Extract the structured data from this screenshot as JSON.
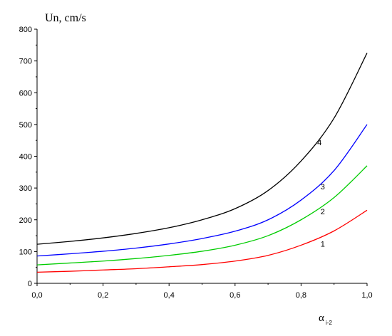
{
  "chart_data": {
    "type": "line",
    "title": "",
    "ylabel": "Un, cm/s",
    "xlabel": "α",
    "xlabel_subscript": "i-2",
    "xlim": [
      0.0,
      1.0
    ],
    "ylim": [
      0,
      800
    ],
    "x_ticks": [
      "0,0",
      "0,2",
      "0,4",
      "0,6",
      "0,8",
      "1,0"
    ],
    "y_ticks": [
      "0",
      "100",
      "200",
      "300",
      "400",
      "500",
      "600",
      "700",
      "800"
    ],
    "grid": false,
    "x": [
      0.0,
      0.1,
      0.2,
      0.3,
      0.4,
      0.5,
      0.6,
      0.7,
      0.8,
      0.9,
      1.0
    ],
    "series": [
      {
        "name": "1",
        "color": "#ff0000",
        "values": [
          35,
          38,
          42,
          46,
          52,
          59,
          70,
          88,
          120,
          165,
          230
        ]
      },
      {
        "name": "2",
        "color": "#00cc00",
        "values": [
          58,
          64,
          70,
          78,
          88,
          101,
          120,
          150,
          200,
          270,
          370
        ]
      },
      {
        "name": "3",
        "color": "#0000ff",
        "values": [
          86,
          93,
          101,
          111,
          124,
          141,
          164,
          200,
          262,
          355,
          500
        ]
      },
      {
        "name": "4",
        "color": "#000000",
        "values": [
          123,
          132,
          143,
          157,
          175,
          200,
          235,
          292,
          385,
          520,
          725
        ]
      }
    ]
  }
}
